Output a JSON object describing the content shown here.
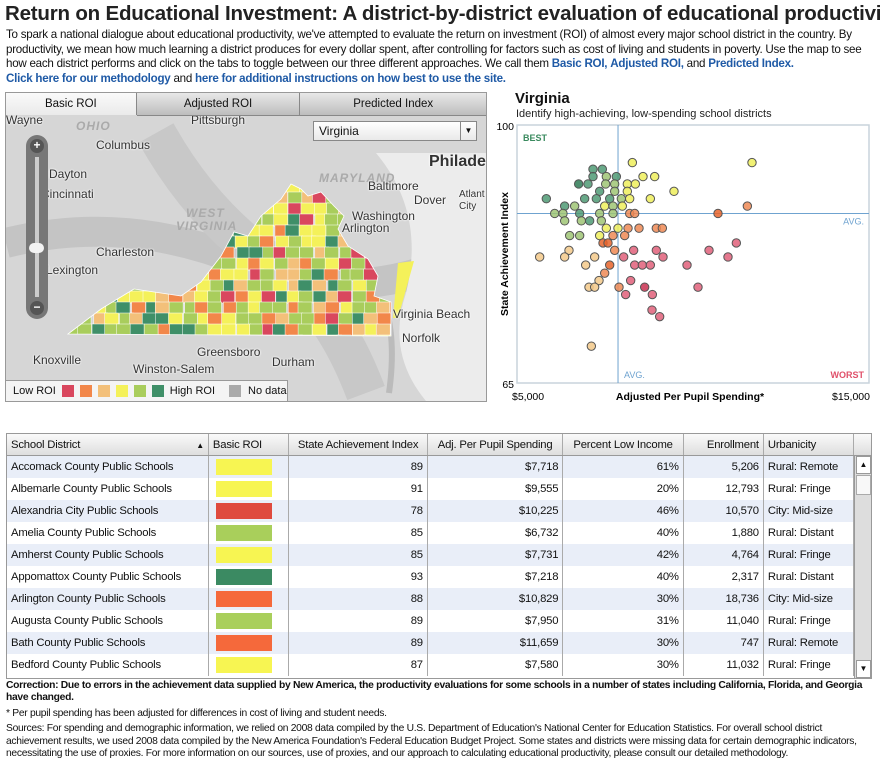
{
  "header": {
    "title": "Return on Educational Investment: A district-by-district evaluation of educational productivity",
    "intro": "To spark a national dialogue about educational productivity, we've attempted to evaluate the return on investment (ROI) of almost every major school district in the country. By productivity, we mean how much learning a district produces for every dollar spent, after controlling for factors such as cost of living and students in poverty. Use the map to see how each district performs and click on the tabs to toggle between our three different approaches. We call them ",
    "link_basic": "Basic ROI,",
    "link_adjusted": "Adjusted ROI,",
    "and_text": " and ",
    "link_predicted": "Predicted Index.",
    "link_methodology": "Click here for our methodology",
    "and_text2": " and ",
    "link_instructions": "here for additional instructions on how best to use the site."
  },
  "map": {
    "tabs": [
      {
        "label": "Basic ROI",
        "active": true
      },
      {
        "label": "Adjusted ROI",
        "active": false
      },
      {
        "label": "Predicted Index",
        "active": false
      }
    ],
    "state_select": "Virginia",
    "cities": [
      "Wayne",
      "Pittsburgh",
      "Columbus",
      "Dayton",
      "Cincinnati",
      "Charleston",
      "Lexington",
      "Baltimore",
      "Dover",
      "Washington",
      "Arlington",
      "Philadel",
      "Atlant",
      "City",
      "Virginia Beach",
      "Norfolk",
      "Greensboro",
      "Knoxville",
      "Winston-Salem",
      "Durham"
    ],
    "regions": [
      "OHIO",
      "WEST",
      "VIRGINIA",
      "MARYLAND"
    ],
    "legend": {
      "low": "Low ROI",
      "high": "High ROI",
      "nodata": "No data"
    },
    "roi_colors": [
      "#d9475e",
      "#f2874a",
      "#f3c07a",
      "#f4f15a",
      "#a9cd5c",
      "#3f8f68"
    ],
    "nodata_color": "#aaaaaa"
  },
  "chart_data": {
    "type": "scatter",
    "title": "Virginia",
    "subtitle": "Identify high-achieving, low-spending school districts",
    "xlabel": "Adjusted Per Pupil Spending*",
    "ylabel": "State Achievement Index",
    "xlim": [
      5000,
      15000
    ],
    "ylim": [
      65,
      100
    ],
    "x_tick_labels": [
      "$5,000",
      "$15,000"
    ],
    "y_tick_labels": [
      "100",
      "65"
    ],
    "avg_x": 7870,
    "avg_y": 88,
    "avg_label": "AVG.",
    "best_label": "BEST",
    "worst_label": "WORST",
    "colors": {
      "dg": "#2e7a55",
      "g": "#4f9a74",
      "lg": "#9fc474",
      "y": "#eeee5c",
      "lo": "#f3c98a",
      "o": "#ef8a55",
      "do": "#e8642a",
      "r": "#e0607a",
      "dr": "#c83050"
    },
    "points": [
      [
        8277,
        94.9,
        "y"
      ],
      [
        11676,
        94.9,
        "y"
      ],
      [
        7159,
        94.0,
        "g"
      ],
      [
        7424,
        94.0,
        "g"
      ],
      [
        7159,
        93.0,
        "g"
      ],
      [
        7538,
        93.0,
        "lg"
      ],
      [
        7822,
        93.0,
        "g"
      ],
      [
        8580,
        93.0,
        "y"
      ],
      [
        8911,
        93.0,
        "y"
      ],
      [
        6752,
        92.0,
        "dg"
      ],
      [
        7017,
        92.0,
        "g"
      ],
      [
        7519,
        92.0,
        "lg"
      ],
      [
        7775,
        92.0,
        "lg"
      ],
      [
        8134,
        92.0,
        "y"
      ],
      [
        8362,
        92.0,
        "y"
      ],
      [
        7348,
        91.0,
        "g"
      ],
      [
        7775,
        91.0,
        "lg"
      ],
      [
        8134,
        91.0,
        "y"
      ],
      [
        9460,
        91.0,
        "y"
      ],
      [
        5833,
        90.0,
        "g"
      ],
      [
        6922,
        90.0,
        "g"
      ],
      [
        7254,
        90.0,
        "g"
      ],
      [
        7633,
        90.0,
        "g"
      ],
      [
        7964,
        90.0,
        "lg"
      ],
      [
        8201,
        90.0,
        "y"
      ],
      [
        8788,
        90.0,
        "y"
      ],
      [
        6354,
        89.0,
        "g"
      ],
      [
        6638,
        89.0,
        "lg"
      ],
      [
        7491,
        89.0,
        "y"
      ],
      [
        7727,
        89.0,
        "lg"
      ],
      [
        7992,
        89.0,
        "y"
      ],
      [
        11544,
        89.0,
        "o"
      ],
      [
        6070,
        88.0,
        "lg"
      ],
      [
        6307,
        88.0,
        "lg"
      ],
      [
        6780,
        88.0,
        "g"
      ],
      [
        7348,
        88.0,
        "lg"
      ],
      [
        7727,
        88.0,
        "lg"
      ],
      [
        8201,
        88.0,
        "o"
      ],
      [
        8343,
        88.0,
        "o"
      ],
      [
        10710,
        88.0,
        "do"
      ],
      [
        6354,
        87.0,
        "lg"
      ],
      [
        6827,
        87.0,
        "lg"
      ],
      [
        7064,
        87.0,
        "g"
      ],
      [
        7396,
        87.0,
        "lg"
      ],
      [
        7538,
        86.0,
        "y"
      ],
      [
        7869,
        86.0,
        "y"
      ],
      [
        8154,
        86.0,
        "o"
      ],
      [
        8466,
        86.0,
        "o"
      ],
      [
        8958,
        86.0,
        "o"
      ],
      [
        9129,
        86.0,
        "o"
      ],
      [
        6496,
        85.0,
        "lg"
      ],
      [
        6780,
        85.0,
        "lg"
      ],
      [
        7348,
        85.0,
        "y"
      ],
      [
        7727,
        85.0,
        "o"
      ],
      [
        8059,
        85.0,
        "o"
      ],
      [
        7443,
        84.0,
        "do"
      ],
      [
        7585,
        84.0,
        "do"
      ],
      [
        11231,
        84.0,
        "r"
      ],
      [
        6477,
        83.0,
        "lo"
      ],
      [
        7775,
        83.0,
        "o"
      ],
      [
        8314,
        83.0,
        "r"
      ],
      [
        8958,
        83.0,
        "r"
      ],
      [
        10455,
        83.0,
        "r"
      ],
      [
        5644,
        82.1,
        "lo"
      ],
      [
        6354,
        82.1,
        "lo"
      ],
      [
        7206,
        82.1,
        "lo"
      ],
      [
        8030,
        82.1,
        "r"
      ],
      [
        9148,
        82.1,
        "r"
      ],
      [
        10994,
        82.1,
        "r"
      ],
      [
        6951,
        81.0,
        "lo"
      ],
      [
        7633,
        81.0,
        "do"
      ],
      [
        8343,
        81.0,
        "r"
      ],
      [
        8561,
        81.0,
        "r"
      ],
      [
        8788,
        81.0,
        "r"
      ],
      [
        9830,
        81.0,
        "r"
      ],
      [
        7491,
        79.9,
        "o"
      ],
      [
        7330,
        78.9,
        "lo"
      ],
      [
        8229,
        78.9,
        "r"
      ],
      [
        7045,
        78.0,
        "lo"
      ],
      [
        7206,
        78.0,
        "lo"
      ],
      [
        7898,
        78.0,
        "o"
      ],
      [
        8627,
        78.0,
        "dr"
      ],
      [
        10142,
        78.0,
        "r"
      ],
      [
        8087,
        77.0,
        "r"
      ],
      [
        8845,
        77.0,
        "r"
      ],
      [
        8835,
        74.9,
        "r"
      ],
      [
        9053,
        74.0,
        "r"
      ],
      [
        7112,
        70.0,
        "lo"
      ]
    ]
  },
  "table": {
    "columns": [
      "School District",
      "Basic ROI",
      "State Achievement Index",
      "Adj. Per Pupil Spending",
      "Percent Low Income",
      "Enrollment",
      "Urbanicity"
    ],
    "sort_indicator": "▲",
    "rows": [
      {
        "district": "Accomack County Public Schools",
        "roi_color": "#f7f552",
        "achievement": "89",
        "spending": "$7,718",
        "low_income": "61%",
        "enrollment": "5,206",
        "urbanicity": "Rural: Remote"
      },
      {
        "district": "Albemarle County Public Schools",
        "roi_color": "#f7f552",
        "achievement": "91",
        "spending": "$9,555",
        "low_income": "20%",
        "enrollment": "12,793",
        "urbanicity": "Rural: Fringe"
      },
      {
        "district": "Alexandria City Public Schools",
        "roi_color": "#df4a3e",
        "achievement": "78",
        "spending": "$10,225",
        "low_income": "46%",
        "enrollment": "10,570",
        "urbanicity": "City: Mid-size"
      },
      {
        "district": "Amelia County Public Schools",
        "roi_color": "#a9cf5b",
        "achievement": "85",
        "spending": "$6,732",
        "low_income": "40%",
        "enrollment": "1,880",
        "urbanicity": "Rural: Distant"
      },
      {
        "district": "Amherst County Public Schools",
        "roi_color": "#f7f552",
        "achievement": "85",
        "spending": "$7,731",
        "low_income": "42%",
        "enrollment": "4,764",
        "urbanicity": "Rural: Fringe"
      },
      {
        "district": "Appomattox County Public Schools",
        "roi_color": "#3b8a62",
        "achievement": "93",
        "spending": "$7,218",
        "low_income": "40%",
        "enrollment": "2,317",
        "urbanicity": "Rural: Distant"
      },
      {
        "district": "Arlington County Public Schools",
        "roi_color": "#f5693b",
        "achievement": "88",
        "spending": "$10,829",
        "low_income": "30%",
        "enrollment": "18,736",
        "urbanicity": "City: Mid-size"
      },
      {
        "district": "Augusta County Public Schools",
        "roi_color": "#a9cf5b",
        "achievement": "89",
        "spending": "$7,950",
        "low_income": "31%",
        "enrollment": "11,040",
        "urbanicity": "Rural: Fringe"
      },
      {
        "district": "Bath County Public Schools",
        "roi_color": "#f5693b",
        "achievement": "89",
        "spending": "$11,659",
        "low_income": "30%",
        "enrollment": "747",
        "urbanicity": "Rural: Remote"
      },
      {
        "district": "Bedford County Public Schools",
        "roi_color": "#f7f552",
        "achievement": "87",
        "spending": "$7,580",
        "low_income": "30%",
        "enrollment": "11,032",
        "urbanicity": "Rural: Fringe"
      }
    ]
  },
  "footer": {
    "correction": "Correction: Due to errors in the achievement data supplied by New America, the productivity evaluations for some schools in a number of states including California, Florida, and Georgia have changed.",
    "note": "* Per pupil spending has been adjusted for differences in cost of living and student needs.",
    "sources": "Sources: For spending and demographic information, we relied on 2008 data compiled by the U.S. Department of Education's National Center for Education Statistics. For overall school district achievement results, we used 2008 data compiled by the New America Foundation's Federal Education Budget Project. Some states and districts were missing data for certain demographic indicators, necessitating the use of proxies. For more information on our sources, use of proxies, and our approach to calculating educational productivity, please consult our detailed methodology."
  }
}
